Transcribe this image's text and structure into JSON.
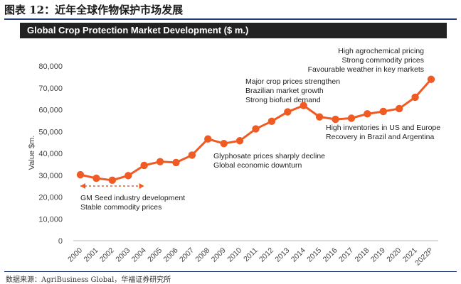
{
  "figure_caption": "图表 12：近年全球作物保护市场发展",
  "source_note": "数据来源：AgriBusiness Global，华福证券研究所",
  "colors": {
    "series": "#f05a23",
    "title_bg": "#222222",
    "rule": "#1f3b73"
  },
  "chart_data": {
    "type": "line",
    "title": "Global Crop Protection Market Development ($ m.)",
    "xlabel": "",
    "ylabel": "Value $m.",
    "ylim": [
      0,
      80000
    ],
    "yticks": [
      0,
      10000,
      20000,
      30000,
      40000,
      50000,
      60000,
      70000,
      80000
    ],
    "ytick_labels": [
      "0",
      "10,000",
      "20,000",
      "30,000",
      "40,000",
      "50,000",
      "60,000",
      "70,000",
      "80,000"
    ],
    "grid": false,
    "x": [
      "2000",
      "2001",
      "2002",
      "2003",
      "2004",
      "2005",
      "2006",
      "2007",
      "2008",
      "2009",
      "2010",
      "2011",
      "2012",
      "2013",
      "2014",
      "2015",
      "2016",
      "2017",
      "2018",
      "2019",
      "2020",
      "2021",
      "2022P"
    ],
    "series": [
      {
        "values": [
          30200,
          28600,
          27700,
          29800,
          34500,
          36200,
          35800,
          39200,
          46600,
          44500,
          45800,
          51200,
          54700,
          59000,
          61900,
          56700,
          55600,
          56100,
          58100,
          59200,
          60500,
          65700,
          73900
        ]
      }
    ],
    "bracket": {
      "from": "2000",
      "to": "2004"
    },
    "annotations": [
      {
        "id": "gm-seed",
        "lines": [
          "GM Seed industry development",
          "Stable commodity prices"
        ]
      },
      {
        "id": "glyphosate",
        "lines": [
          "Glyphosate prices sharply decline",
          "Global economic downturn"
        ]
      },
      {
        "id": "major-crop",
        "lines": [
          "Major crop prices strengthen",
          "Brazilian market growth",
          "Strong biofuel demand"
        ]
      },
      {
        "id": "inventories",
        "lines": [
          "High inventories in US and Europe",
          "Recovery in Brazil and Argentina"
        ]
      },
      {
        "id": "agrochemical",
        "lines": [
          "High agrochemical pricing",
          "Strong commodity prices",
          "Favourable weather in key markets"
        ]
      }
    ]
  }
}
